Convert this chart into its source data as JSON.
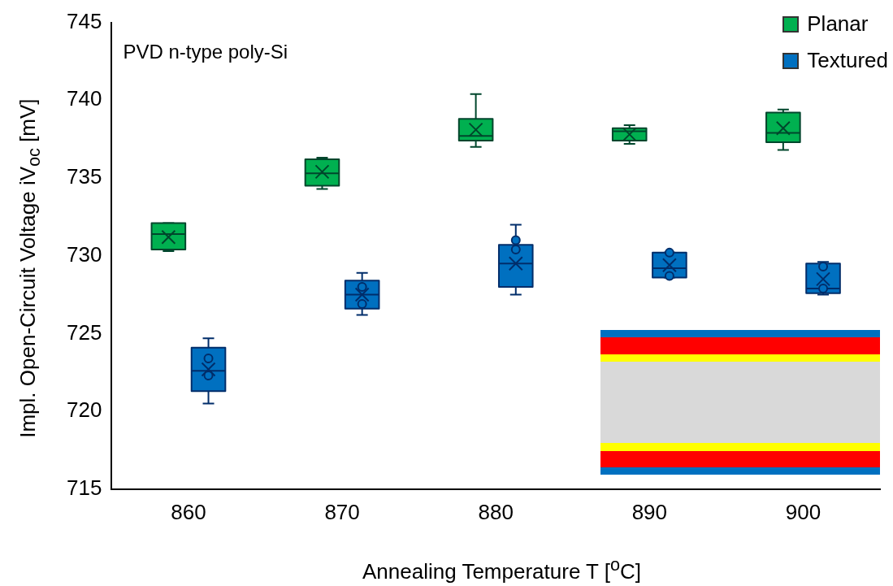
{
  "chart_data": {
    "type": "box",
    "xlabel": "Annealing Temperature T [$^{o}$C]",
    "ylabel": "Impl. Open-Circuit Voltage iV$_{oc}$ [mV]",
    "categories": [
      "860",
      "870",
      "880",
      "890",
      "900"
    ],
    "ylim": [
      715,
      745
    ],
    "yticks": [
      715,
      720,
      725,
      730,
      735,
      740,
      745
    ],
    "grid": false,
    "legend": "top right",
    "annotations": [
      "PVD n-type poly-Si"
    ],
    "series": [
      {
        "name": "Planar",
        "color": "#00b050",
        "boxes": [
          {
            "low": 730.3,
            "q1": 730.4,
            "median": 731.4,
            "q3": 732.1,
            "high": 732.1,
            "mean": 731.2
          },
          {
            "low": 734.3,
            "q1": 734.5,
            "median": 735.3,
            "q3": 736.2,
            "high": 736.3,
            "mean": 735.4
          },
          {
            "low": 737.0,
            "q1": 737.4,
            "median": 737.7,
            "q3": 738.8,
            "high": 740.4,
            "mean": 738.1
          },
          {
            "low": 737.2,
            "q1": 737.4,
            "median": 738.0,
            "q3": 738.2,
            "high": 738.4,
            "mean": 737.8
          },
          {
            "low": 736.8,
            "q1": 737.3,
            "median": 737.9,
            "q3": 739.2,
            "high": 739.4,
            "mean": 738.2
          }
        ]
      },
      {
        "name": "Textured",
        "color": "#0070c0",
        "boxes": [
          {
            "low": 720.5,
            "q1": 721.3,
            "median": 722.6,
            "q3": 724.1,
            "high": 724.7,
            "mean": 722.7,
            "outliers": [
              723.4,
              722.3
            ]
          },
          {
            "low": 726.2,
            "q1": 726.6,
            "median": 727.5,
            "q3": 728.4,
            "high": 728.9,
            "mean": 727.5,
            "outliers": [
              728.0,
              726.9
            ]
          },
          {
            "low": 727.5,
            "q1": 728.0,
            "median": 729.5,
            "q3": 730.7,
            "high": 732.0,
            "mean": 729.5,
            "outliers": [
              731.0,
              730.4
            ]
          },
          {
            "low": 728.6,
            "q1": 728.6,
            "median": 729.2,
            "q3": 730.2,
            "high": 730.2,
            "mean": 729.4,
            "outliers": [
              730.2,
              728.7
            ]
          },
          {
            "low": 727.5,
            "q1": 727.6,
            "median": 727.9,
            "q3": 729.5,
            "high": 729.6,
            "mean": 728.5,
            "outliers": [
              729.3,
              727.9
            ]
          }
        ]
      }
    ]
  }
}
